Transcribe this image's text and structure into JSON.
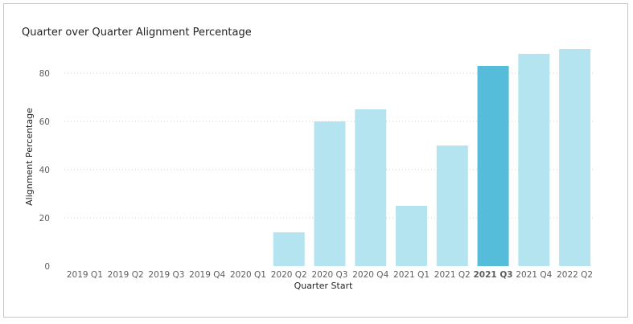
{
  "chart_data": {
    "type": "bar",
    "title": "Quarter over Quarter Alignment Percentage",
    "xlabel": "Quarter Start",
    "ylabel": "Alignment Percentage",
    "categories": [
      "2019 Q1",
      "2019 Q2",
      "2019 Q3",
      "2019 Q4",
      "2020 Q1",
      "2020 Q2",
      "2020 Q3",
      "2020 Q4",
      "2021 Q1",
      "2021 Q2",
      "2021 Q3",
      "2021 Q4",
      "2022 Q2"
    ],
    "values": [
      0,
      0,
      0,
      0,
      0,
      14,
      60,
      65,
      25,
      50,
      83,
      88,
      90
    ],
    "highlighted_category": "2021 Q3",
    "ylim": [
      0,
      90
    ],
    "yticks": [
      0,
      20,
      40,
      60,
      80
    ],
    "grid": true,
    "colors": {
      "bar": "#b3e4ef",
      "highlight": "#55bcd9"
    }
  }
}
